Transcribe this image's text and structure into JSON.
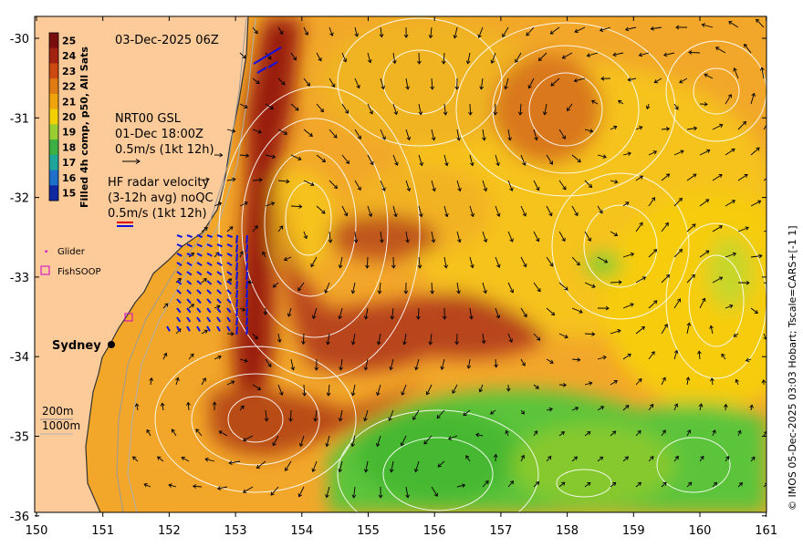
{
  "map": {
    "timestamp": "03-Dec-2025 06Z",
    "colorbar": {
      "label": "Filled 4h comp, p50, All Sats",
      "ticks": [
        "25",
        "24",
        "23",
        "22",
        "21",
        "20",
        "19",
        "18",
        "17",
        "16",
        "15"
      ],
      "colors": [
        "#7a0d0d",
        "#a3220f",
        "#cc4a12",
        "#e07a12",
        "#f0a40c",
        "#f5d000",
        "#9acd32",
        "#3cb043",
        "#1fa69a",
        "#1e70c8",
        "#1028a0"
      ]
    },
    "gsl": {
      "line1": "NRT00 GSL",
      "line2": "01-Dec 18:00Z",
      "line3": "0.5m/s (1kt 12h)"
    },
    "hf_radar": {
      "line1": "HF radar velocity",
      "line2": "(3-12h avg) noQC",
      "line3": "0.5m/s (1kt 12h)"
    },
    "legend": {
      "glider": "Glider",
      "fishsoop": "FishSOOP"
    },
    "place": "Sydney",
    "isobaths": {
      "a": "200m",
      "b": "1000m"
    },
    "credit": "© IMOS 05-Dec-2025 03:03 Hobart; Tscale=CARS+[-1 1]",
    "x_ticks": [
      "150",
      "151",
      "152",
      "153",
      "154",
      "155",
      "156",
      "157",
      "158",
      "159",
      "160",
      "161"
    ],
    "y_ticks": [
      "-30",
      "-31",
      "-32",
      "-33",
      "-34",
      "-35",
      "-36"
    ],
    "colors": {
      "land": "#fdcb9a",
      "warm_core": "#b03014",
      "ocean_base": "#f2a72a",
      "cool_green": "#59c43a",
      "contour": "#ffffff",
      "arrow": "#000000",
      "radar": "#1010e0"
    }
  }
}
